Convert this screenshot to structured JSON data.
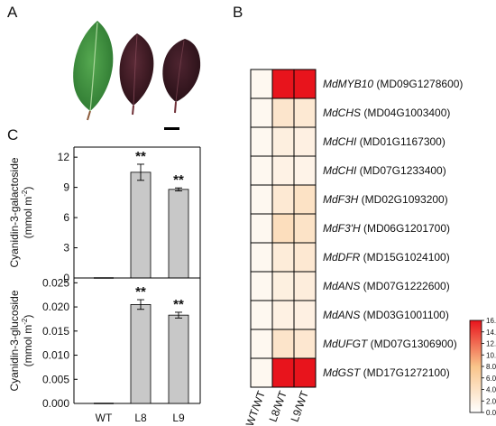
{
  "panel_labels": {
    "a": "A",
    "b": "B",
    "c": "C"
  },
  "panel_a": {
    "leaves": [
      {
        "color": "#3e8a3c"
      },
      {
        "color": "#4a1f2a"
      },
      {
        "color": "#3d1c25"
      }
    ]
  },
  "chart_data": [
    {
      "type": "bar",
      "panel": "C-top",
      "categories": [
        "WT",
        "L8",
        "L9"
      ],
      "values": [
        0,
        10.5,
        8.8
      ],
      "errors": [
        0,
        0.8,
        0.15
      ],
      "significance": [
        "",
        "**",
        "**"
      ],
      "ylabel_line1": "Cyanidin-3-galactoside",
      "ylabel_line2": "(mmol m",
      "ylabel_sup": "-2",
      "ylabel_end": ")",
      "ylim": [
        0,
        13
      ],
      "yticks": [
        0,
        3,
        6,
        9,
        12
      ],
      "ytick_labels": [
        "0",
        "3",
        "6",
        "9",
        "12"
      ],
      "bar_color": "#c8c8c8"
    },
    {
      "type": "bar",
      "panel": "C-bottom",
      "categories": [
        "WT",
        "L8",
        "L9"
      ],
      "values": [
        0,
        0.0205,
        0.0183
      ],
      "errors": [
        0,
        0.001,
        0.0006
      ],
      "significance": [
        "",
        "**",
        "**"
      ],
      "ylabel_line1": "Cyanidin-3-glucoside",
      "ylabel_line2": "(mmol m",
      "ylabel_sup": "-2",
      "ylabel_end": ")",
      "ylim": [
        0,
        0.026
      ],
      "yticks": [
        0,
        0.005,
        0.01,
        0.015,
        0.02,
        0.025
      ],
      "ytick_labels": [
        "0.000",
        "0.005",
        "0.010",
        "0.015",
        "0.020",
        "0.025"
      ],
      "bar_color": "#c8c8c8"
    },
    {
      "type": "heatmap",
      "panel": "B",
      "columns": [
        "WT/WT",
        "L8/WT",
        "L9/WT"
      ],
      "rows": [
        {
          "gene": "MdMYB10",
          "id": " (MD09G1278600)"
        },
        {
          "gene": "MdCHS",
          "id": " (MD04G1003400)"
        },
        {
          "gene": "MdCHI",
          "id": " (MD01G1167300)"
        },
        {
          "gene": "MdCHI",
          "id": " (MD07G1233400)"
        },
        {
          "gene": "MdF3H",
          "id": " (MD02G1093200)"
        },
        {
          "gene": "MdF3'H",
          "id": " (MD06G1201700)"
        },
        {
          "gene": "MdDFR",
          "id": " (MD15G1024100)"
        },
        {
          "gene": "MdANS",
          "id": " (MD07G1222600)"
        },
        {
          "gene": "MdANS",
          "id": " (MD03G1001100)"
        },
        {
          "gene": "MdUFGT",
          "id": " (MD07G1306900)"
        },
        {
          "gene": "MdGST",
          "id": " (MD17G1272100)"
        }
      ],
      "values": [
        [
          1,
          16,
          16
        ],
        [
          1,
          3.5,
          3.0
        ],
        [
          1,
          2.2,
          2.0
        ],
        [
          1,
          1.8,
          1.6
        ],
        [
          1,
          3.0,
          4.0
        ],
        [
          1,
          4.5,
          3.8
        ],
        [
          1,
          2.6,
          3.1
        ],
        [
          1,
          2.1,
          2.4
        ],
        [
          1,
          1.9,
          2.0
        ],
        [
          1,
          3.6,
          3.2
        ],
        [
          1,
          16,
          16
        ]
      ],
      "colorbar": {
        "min": 0,
        "max": 16,
        "tick_labels": [
          "16.0",
          "14.0",
          "12.0",
          "10.0",
          "8.0",
          "6.0",
          "4.0",
          "2.0",
          "0.0"
        ],
        "low_color": "#ffffff",
        "mid_color": "#f9c48a",
        "high_color": "#e8141c"
      }
    }
  ]
}
